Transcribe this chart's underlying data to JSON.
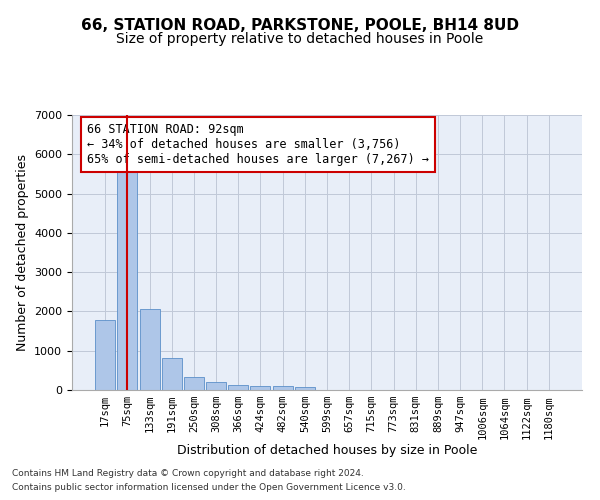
{
  "title_line1": "66, STATION ROAD, PARKSTONE, POOLE, BH14 8UD",
  "title_line2": "Size of property relative to detached houses in Poole",
  "xlabel": "Distribution of detached houses by size in Poole",
  "ylabel": "Number of detached properties",
  "footnote1": "Contains HM Land Registry data © Crown copyright and database right 2024.",
  "footnote2": "Contains public sector information licensed under the Open Government Licence v3.0.",
  "annotation_title": "66 STATION ROAD: 92sqm",
  "annotation_line2": "← 34% of detached houses are smaller (3,756)",
  "annotation_line3": "65% of semi-detached houses are larger (7,267) →",
  "bar_categories": [
    "17sqm",
    "75sqm",
    "133sqm",
    "191sqm",
    "250sqm",
    "308sqm",
    "366sqm",
    "424sqm",
    "482sqm",
    "540sqm",
    "599sqm",
    "657sqm",
    "715sqm",
    "773sqm",
    "831sqm",
    "889sqm",
    "947sqm",
    "1006sqm",
    "1064sqm",
    "1122sqm",
    "1180sqm"
  ],
  "bar_values": [
    1780,
    5780,
    2060,
    820,
    340,
    195,
    115,
    100,
    95,
    75,
    0,
    0,
    0,
    0,
    0,
    0,
    0,
    0,
    0,
    0,
    0
  ],
  "bar_color": "#aec6e8",
  "bar_edge_color": "#5b8fc9",
  "subject_bar_index": 1,
  "subject_line_color": "#cc0000",
  "ylim": [
    0,
    7000
  ],
  "yticks": [
    0,
    1000,
    2000,
    3000,
    4000,
    5000,
    6000,
    7000
  ],
  "grid_color": "#c0c8d8",
  "bg_color": "#e8eef8",
  "annotation_box_edge_color": "#cc0000",
  "title_fontsize": 11,
  "subtitle_fontsize": 10,
  "axis_label_fontsize": 9,
  "tick_fontsize": 7.5,
  "annotation_fontsize": 8.5
}
